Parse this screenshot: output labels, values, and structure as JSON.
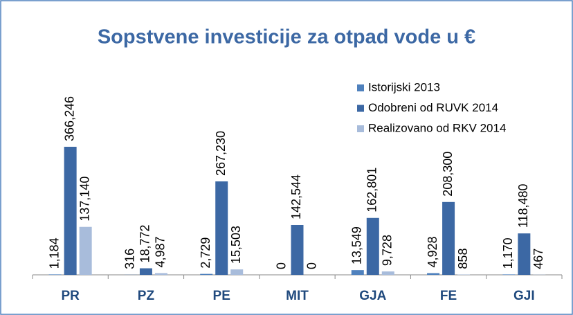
{
  "chart_data": {
    "type": "bar",
    "title": "Sopstvene investicije za otpad vode u €",
    "categories": [
      "PR",
      "PZ",
      "PE",
      "MIT",
      "GJA",
      "FE",
      "GJI"
    ],
    "series": [
      {
        "name": "Istorijski 2013",
        "color": "#4f81bd",
        "values": [
          1184,
          316,
          2729,
          0,
          13549,
          4928,
          1170
        ],
        "value_labels": [
          "1,184",
          "316",
          "2,729",
          "0",
          "13,549",
          "4,928",
          "1,170"
        ]
      },
      {
        "name": "Odobreni od RUVK 2014",
        "color": "#3c68a4",
        "values": [
          366246,
          18772,
          267230,
          142544,
          162801,
          208300,
          118480
        ],
        "value_labels": [
          "366,246",
          "18,772",
          "267,230",
          "142,544",
          "162,801",
          "208,300",
          "118,480"
        ]
      },
      {
        "name": "Realizovano od RKV 2014",
        "color": "#a8bcdb",
        "values": [
          137140,
          4987,
          15503,
          0,
          9728,
          858,
          467
        ],
        "value_labels": [
          "137,140",
          "4,987",
          "15,503",
          "0",
          "9,728",
          "858",
          "467"
        ]
      }
    ],
    "legend": "upper right"
  }
}
